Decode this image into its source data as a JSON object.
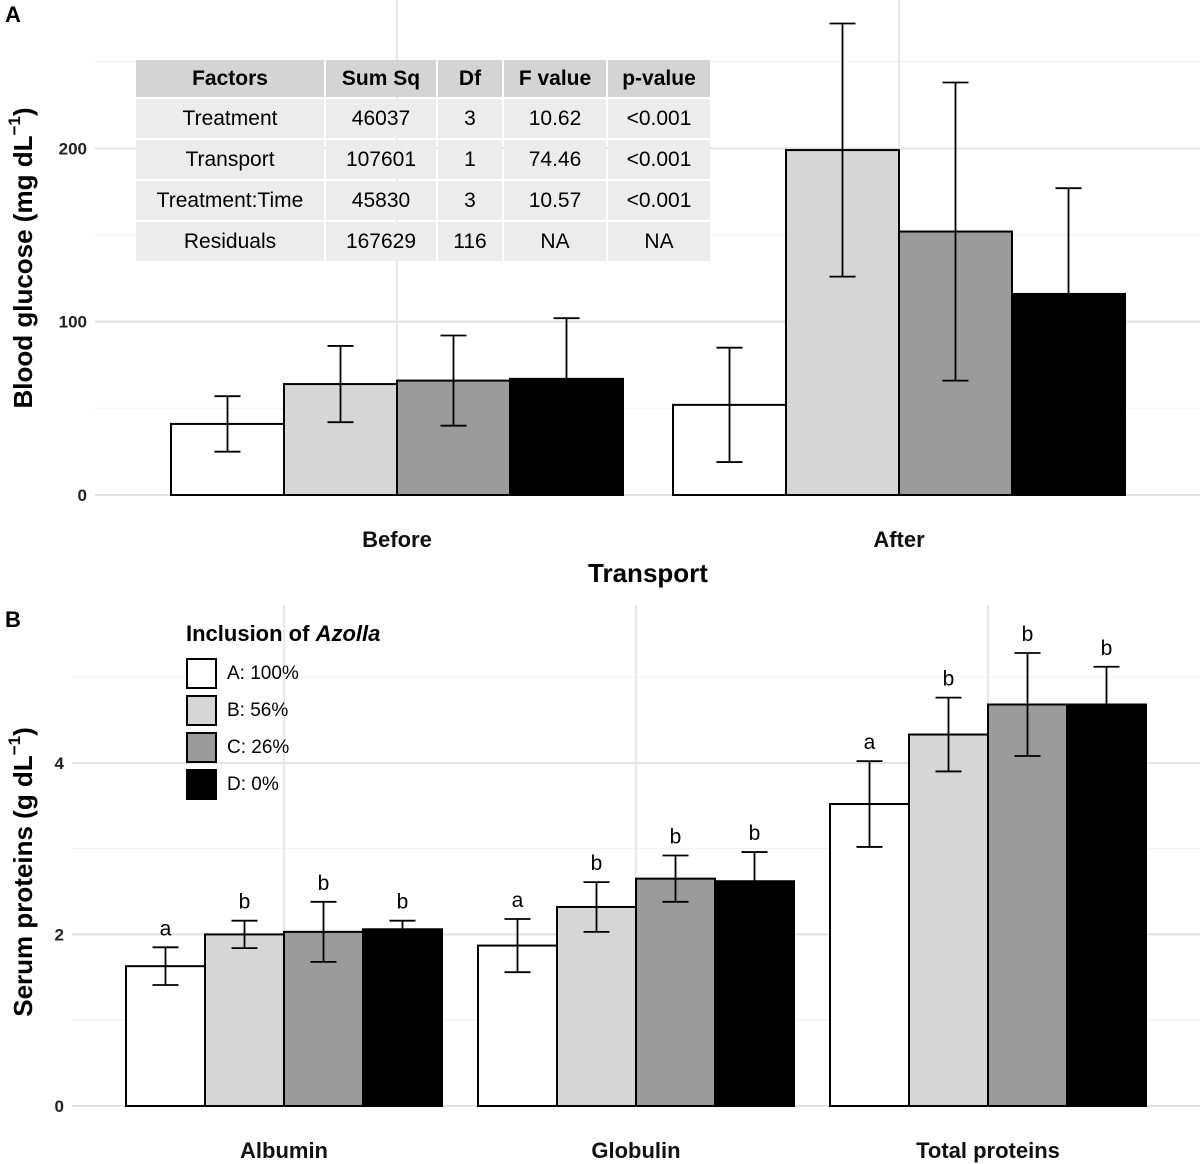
{
  "chart_data": [
    {
      "panel": "A",
      "type": "bar",
      "xlabel": "Transport",
      "ylabel": "Blood glucose (mg dL",
      "ylabel_sup": "−1",
      "ylabel_close": ")",
      "ylim": [
        0,
        270
      ],
      "yticks": [
        0,
        100,
        200
      ],
      "categories": [
        "Before",
        "After"
      ],
      "series": [
        {
          "name": "A: 100%",
          "color": "#ffffff",
          "values": [
            41,
            52
          ],
          "errors": [
            16,
            33
          ]
        },
        {
          "name": "B: 56%",
          "color": "#d6d6d6",
          "values": [
            64,
            199
          ],
          "errors": [
            22,
            73
          ]
        },
        {
          "name": "C: 26%",
          "color": "#9b9b9b",
          "values": [
            66,
            152
          ],
          "errors": [
            26,
            86
          ]
        },
        {
          "name": "D: 0%",
          "color": "#000000",
          "values": [
            67,
            116
          ],
          "errors": [
            35,
            61
          ]
        }
      ],
      "anova_table": {
        "columns": [
          "Factors",
          "Sum Sq",
          "Df",
          "F value",
          "p-value"
        ],
        "rows": [
          [
            "Treatment",
            "46037",
            "3",
            "10.62",
            "<0.001"
          ],
          [
            "Transport",
            "107601",
            "1",
            "74.46",
            "<0.001"
          ],
          [
            "Treatment:Time",
            "45830",
            "3",
            "10.57",
            "<0.001"
          ],
          [
            "Residuals",
            "167629",
            "116",
            "NA",
            "NA"
          ]
        ]
      }
    },
    {
      "panel": "B",
      "type": "bar",
      "xlabel": "",
      "ylabel": "Serum proteins (g dL",
      "ylabel_sup": "−1",
      "ylabel_close": ")",
      "ylim": [
        0,
        5.7
      ],
      "yticks": [
        0,
        2,
        4
      ],
      "categories": [
        "Albumin",
        "Globulin",
        "Total proteins"
      ],
      "series": [
        {
          "name": "A: 100%",
          "color": "#ffffff",
          "values": [
            1.63,
            1.87,
            3.52
          ],
          "errors": [
            0.22,
            0.31,
            0.5
          ],
          "letters": [
            "a",
            "a",
            "a"
          ]
        },
        {
          "name": "B: 56%",
          "color": "#d6d6d6",
          "values": [
            2.0,
            2.32,
            4.33
          ],
          "errors": [
            0.16,
            0.29,
            0.43
          ],
          "letters": [
            "b",
            "b",
            "b"
          ]
        },
        {
          "name": "C: 26%",
          "color": "#9b9b9b",
          "values": [
            2.03,
            2.65,
            4.68
          ],
          "errors": [
            0.35,
            0.27,
            0.6
          ],
          "letters": [
            "b",
            "b",
            "b"
          ]
        },
        {
          "name": "D: 0%",
          "color": "#000000",
          "values": [
            2.06,
            2.62,
            4.68
          ],
          "errors": [
            0.1,
            0.34,
            0.44
          ],
          "letters": [
            "b",
            "b",
            "b"
          ]
        }
      ],
      "legend": {
        "title_prefix": "Inclusion of ",
        "title_italic": "Azolla",
        "items": [
          "A: 100%",
          "B: 56%",
          "C: 26%",
          "D: 0%"
        ],
        "colors": [
          "#ffffff",
          "#d6d6d6",
          "#9b9b9b",
          "#000000"
        ]
      }
    }
  ]
}
